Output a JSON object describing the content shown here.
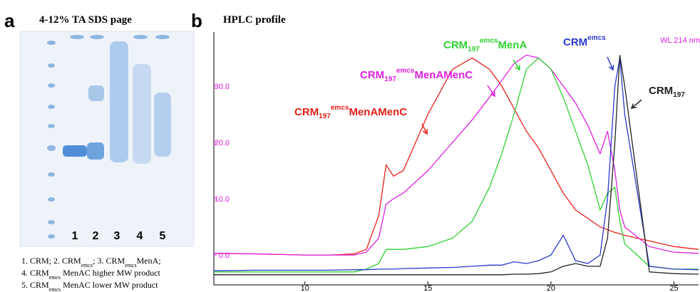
{
  "panel_a": {
    "label": "a",
    "title": "4-12% TA SDS page",
    "lanes": [
      "1",
      "2",
      "3",
      "4",
      "5"
    ],
    "legend": [
      [
        "1. CRM; 2. CRM",
        "emcs",
        "; 3. CRM",
        "emcs",
        "MenA;"
      ],
      [
        "4. CRM",
        "emcs",
        " MenAC higher MW product"
      ],
      [
        "5. CRM",
        "emcs",
        " MenAC lower MW product"
      ]
    ]
  },
  "chart_data": {
    "type": "line",
    "label": "b",
    "title": "HPLC profile",
    "note": "WL 214 nm",
    "x": [
      6.3,
      8,
      10,
      11,
      12,
      12.5,
      13,
      13.3,
      13.6,
      14,
      15,
      16,
      16.8,
      17.5,
      18,
      18.5,
      19,
      19.5,
      20,
      20.5,
      21,
      21.5,
      22,
      22.3,
      22.6,
      22.8,
      23,
      24,
      25,
      26
    ],
    "xlim": [
      6.3,
      26
    ],
    "xticks": [
      10,
      15,
      20,
      25
    ],
    "ylim": [
      -5.3,
      39.6
    ],
    "yticks": [
      {
        "value": 0,
        "label": "0.0"
      },
      {
        "value": 10,
        "label": "10.0"
      },
      {
        "value": 20,
        "label": "20.0"
      },
      {
        "value": 30,
        "label": "30.0"
      }
    ],
    "series": [
      {
        "color": "#e8201a",
        "label": {
          "base": "CRM",
          "sub": "197",
          "sup": "emcs",
          "rest": "MenAMenC"
        },
        "values": [
          0.3,
          0.2,
          0,
          0,
          0.2,
          1,
          7,
          16,
          14,
          15,
          25,
          33,
          35,
          33,
          30,
          26,
          22,
          19,
          15,
          11,
          8,
          6.5,
          5,
          4.5,
          4,
          3.8,
          3.5,
          2.5,
          1.5,
          1
        ]
      },
      {
        "color": "#e020e0",
        "label": {
          "base": "CRM",
          "sub": "197",
          "sup": "emcs",
          "rest": "MenAMenC"
        },
        "values": [
          0.3,
          0.2,
          0,
          0,
          0,
          0.5,
          3,
          9,
          10,
          11,
          15,
          20,
          24,
          28,
          31,
          34,
          35.5,
          35,
          33,
          30,
          27,
          23,
          18,
          22,
          15,
          8,
          5,
          1.5,
          0.5,
          0.3
        ]
      },
      {
        "color": "#30d030",
        "label": {
          "base": "CRM",
          "sub": "197",
          "sup": "emcs",
          "rest": "MenA"
        },
        "values": [
          -3,
          -3,
          -3,
          -3,
          -3,
          -2.5,
          -1.5,
          1,
          1,
          1,
          1.5,
          3,
          6,
          12,
          18,
          25,
          33,
          35,
          33,
          28,
          22,
          16,
          8,
          11,
          12,
          6,
          2,
          -2,
          -2.5,
          -2.5
        ]
      },
      {
        "color": "#2a3acc",
        "label": {
          "base": "CRM",
          "sup": "emcs"
        },
        "values": [
          -2.8,
          -2.7,
          -2.7,
          -2.7,
          -2.6,
          -2.6,
          -2.5,
          -2.5,
          -2.5,
          -2.4,
          -2.3,
          -2.2,
          -2,
          -1.8,
          -1.8,
          -1.2,
          -1.5,
          -1,
          0,
          3.5,
          -1,
          -1.5,
          0,
          10,
          30,
          35,
          25,
          -2,
          -2.5,
          -2.6
        ]
      },
      {
        "color": "#222222",
        "label": {
          "base": "CRM",
          "sub": "197"
        },
        "values": [
          -3.5,
          -3.5,
          -3.5,
          -3.5,
          -3.5,
          -3.5,
          -3.5,
          -3.5,
          -3.5,
          -3.5,
          -3.5,
          -3.5,
          -3.5,
          -3.5,
          -3.5,
          -3.4,
          -3.4,
          -3.3,
          -3,
          -2,
          -1.5,
          -2,
          -2,
          3,
          20,
          35.5,
          30,
          -3,
          -3.3,
          -3.4
        ]
      }
    ]
  }
}
